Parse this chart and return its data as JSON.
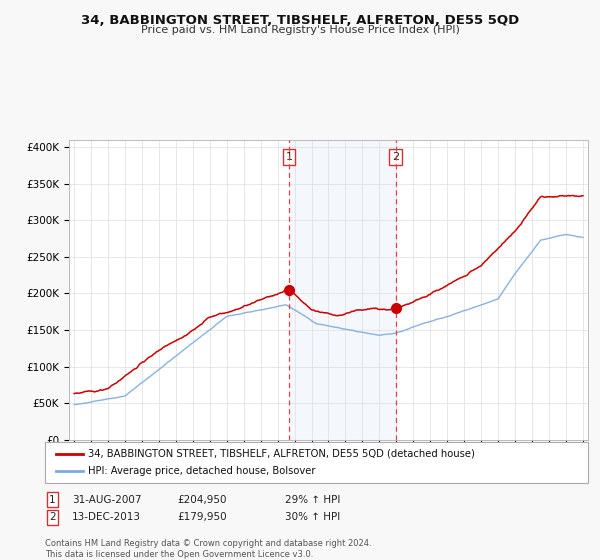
{
  "title": "34, BABBINGTON STREET, TIBSHELF, ALFRETON, DE55 5QD",
  "subtitle": "Price paid vs. HM Land Registry's House Price Index (HPI)",
  "legend_label_red": "34, BABBINGTON STREET, TIBSHELF, ALFRETON, DE55 5QD (detached house)",
  "legend_label_blue": "HPI: Average price, detached house, Bolsover",
  "annotation1_label": "1",
  "annotation1_date": "31-AUG-2007",
  "annotation1_price": "£204,950",
  "annotation1_hpi": "29% ↑ HPI",
  "annotation2_label": "2",
  "annotation2_date": "13-DEC-2013",
  "annotation2_price": "£179,950",
  "annotation2_hpi": "30% ↑ HPI",
  "footer": "Contains HM Land Registry data © Crown copyright and database right 2024.\nThis data is licensed under the Open Government Licence v3.0.",
  "ylim": [
    0,
    410000
  ],
  "yticks": [
    0,
    50000,
    100000,
    150000,
    200000,
    250000,
    300000,
    350000,
    400000
  ],
  "background_color": "#f5f5f5",
  "plot_bg_color": "#ffffff",
  "red_color": "#cc0000",
  "blue_color": "#7aaadd",
  "vline1_x": 2007.67,
  "vline2_x": 2013.96,
  "marker1_x": 2007.67,
  "marker1_y": 204950,
  "marker2_x": 2013.96,
  "marker2_y": 179950,
  "xmin": 1994.7,
  "xmax": 2025.3
}
